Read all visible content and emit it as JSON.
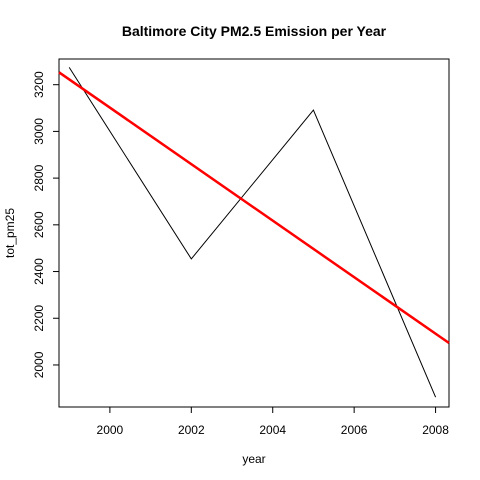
{
  "chart_data": {
    "type": "line",
    "title": "Baltimore City PM2.5 Emission per Year",
    "xlabel": "year",
    "ylabel": "tot_pm25",
    "xlim": [
      1998.75,
      2008.33
    ],
    "ylim": [
      1820,
      3310
    ],
    "x_ticks": [
      2000,
      2002,
      2004,
      2006,
      2008
    ],
    "y_ticks": [
      2000,
      2200,
      2400,
      2600,
      2800,
      3000,
      3200
    ],
    "grid": false,
    "legend": "none",
    "series": [
      {
        "x": [
          1999,
          2002,
          2005,
          2008
        ],
        "values": [
          3274,
          2454,
          3091,
          1862
        ],
        "color": "#000000"
      },
      {
        "kind": "fit-line",
        "x": [
          1998.75,
          2008.33
        ],
        "values": [
          3253,
          2094
        ],
        "color": "#FF0000"
      }
    ]
  }
}
